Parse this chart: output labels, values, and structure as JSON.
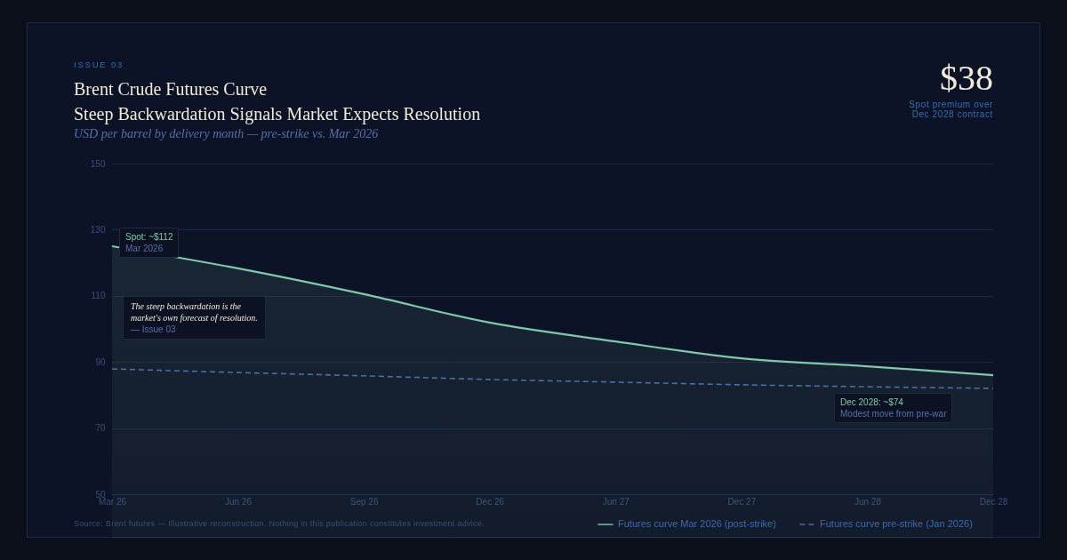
{
  "chart_data": {
    "type": "line",
    "title": "Brent Crude Futures Curve\nSteep Backwardation Signals Market Expects Resolution",
    "subtitle": "USD per barrel by delivery month — pre-strike vs. Mar 2026",
    "categories": [
      "Mar 26",
      "Jun 26",
      "Sep 26",
      "Dec 26",
      "Jun 27",
      "Dec 27",
      "Jun 28",
      "Dec 28"
    ],
    "series": [
      {
        "name": "Futures curve Mar 2026 (post-strike)",
        "type": "area",
        "color": "#7fc8a9",
        "values": [
          125,
          118.3,
          110.5,
          101.9,
          96.2,
          91.1,
          88.7,
          86
        ]
      },
      {
        "name": "Futures curve pre-strike (Jan 2026)",
        "type": "line",
        "line_style": "dashed",
        "color": "#4a6fa5",
        "values": [
          87.9,
          86.8,
          85.8,
          84.7,
          83.9,
          83.1,
          82.5,
          82
        ]
      }
    ],
    "ylim": [
      50,
      150
    ],
    "yticks": [
      50,
      70,
      90,
      110,
      130,
      150
    ],
    "grid": "y",
    "legend": "bottom right",
    "annotations": [
      "ISSUE 03",
      "$38",
      "Spot premium over\nDec 2028 contract",
      {
        "text": "Spot: ~$112",
        "x": "Mar 26",
        "y": 125
      },
      "Mar 2026",
      "The steep backwardation is the\nmarket's own forecast of resolution.",
      "— Issue 03",
      "Dec 2028: ~$74",
      "Modest move from pre-war",
      "Source: Brent futures — Illustrative reconstruction. Nothing in this publication constitutes investment advice."
    ]
  }
}
